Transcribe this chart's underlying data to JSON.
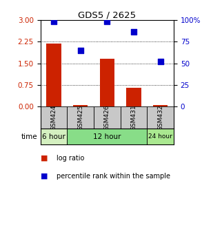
{
  "title": "GDS5 / 2625",
  "samples": [
    "GSM424",
    "GSM425",
    "GSM426",
    "GSM431",
    "GSM432"
  ],
  "log_ratio": [
    2.19,
    0.05,
    1.65,
    0.65,
    0.05
  ],
  "percentile_rank": [
    99,
    65,
    99,
    87,
    52
  ],
  "bar_color": "#cc2200",
  "dot_color": "#0000cc",
  "left_ylim": [
    0,
    3
  ],
  "right_ylim": [
    0,
    100
  ],
  "left_yticks": [
    0,
    0.75,
    1.5,
    2.25,
    3
  ],
  "right_yticks": [
    0,
    25,
    50,
    75,
    100
  ],
  "right_yticklabels": [
    "0",
    "25",
    "50",
    "75",
    "100%"
  ],
  "time_groups": [
    {
      "label": "6 hour",
      "indices": [
        0
      ],
      "color": "#d4f0c0"
    },
    {
      "label": "12 hour",
      "indices": [
        1,
        2,
        3
      ],
      "color": "#88dd88"
    },
    {
      "label": "24 hour",
      "indices": [
        4
      ],
      "color": "#aae890"
    }
  ],
  "xlabel_time": "time",
  "legend_bar_label": "log ratio",
  "legend_dot_label": "percentile rank within the sample",
  "sample_box_color": "#c8c8c8",
  "bar_width": 0.55,
  "dot_size": 35
}
